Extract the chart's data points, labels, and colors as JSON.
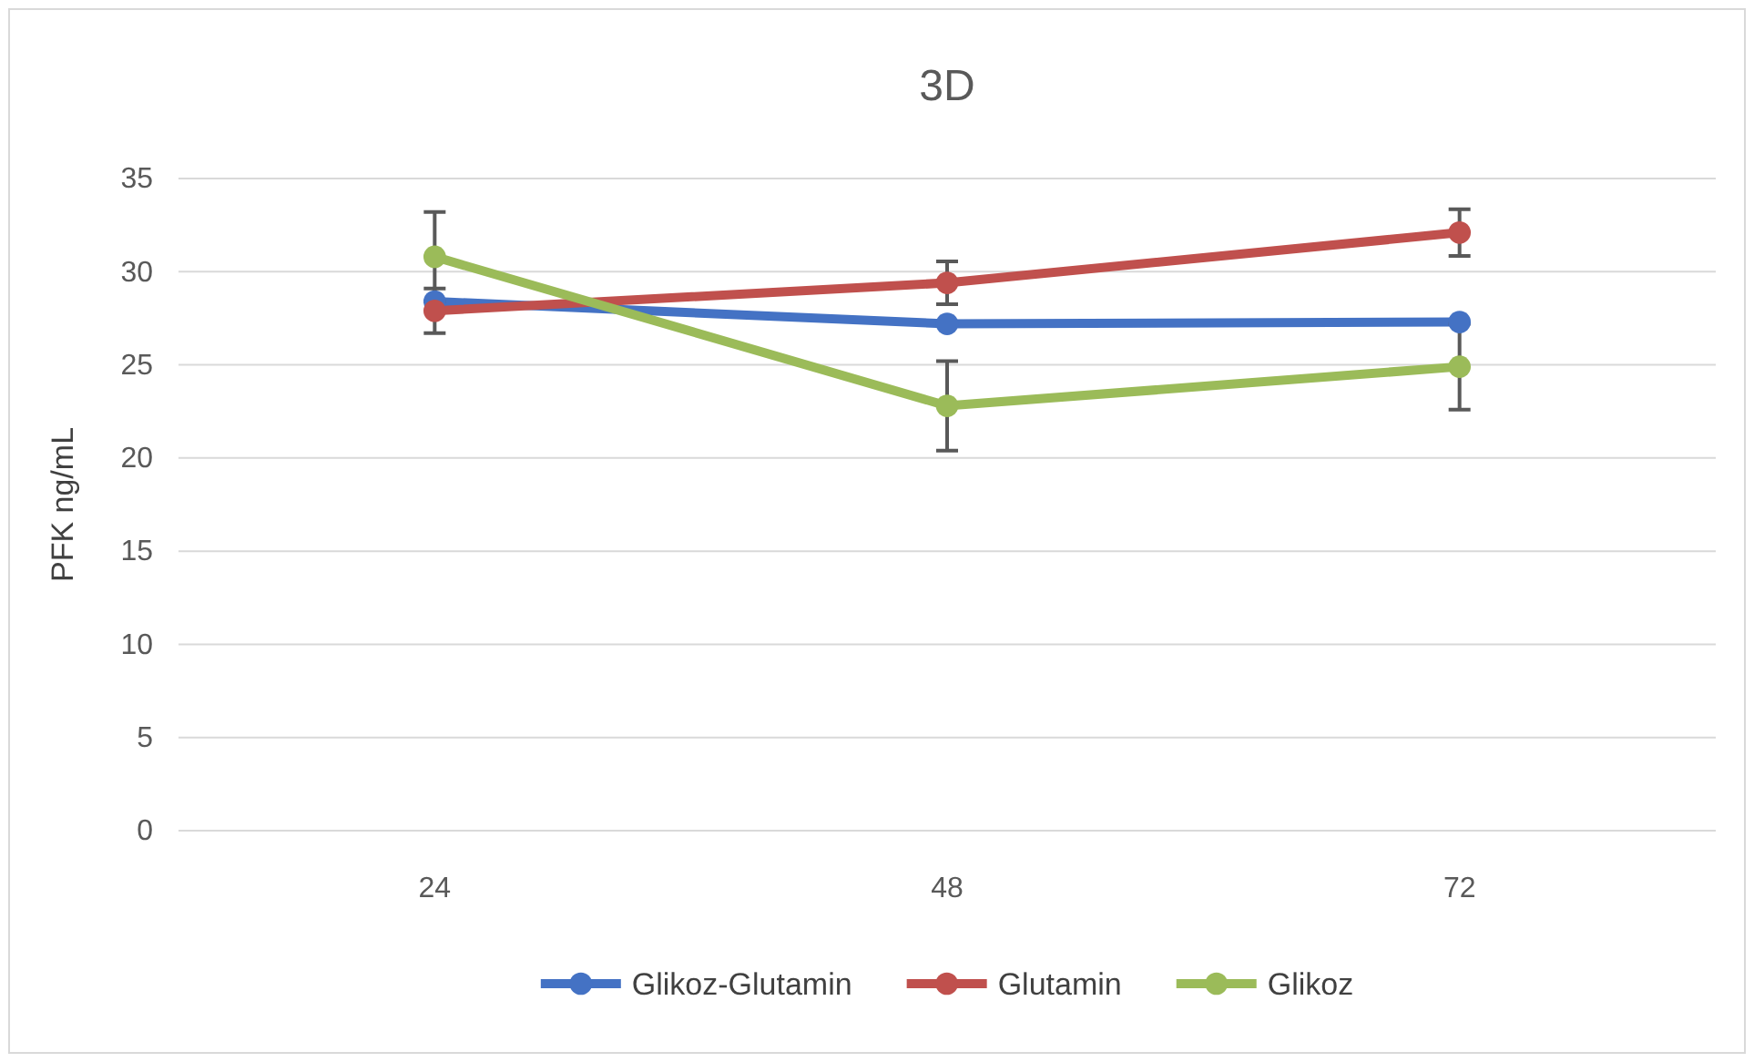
{
  "chart_data": {
    "type": "line",
    "title": "3D",
    "ylabel": "PFK ng/mL",
    "categories": [
      "24",
      "48",
      "72"
    ],
    "series": [
      {
        "name": "Glikoz-Glutamin",
        "color": "#4472c4",
        "values": [
          28.4,
          27.2,
          27.3
        ]
      },
      {
        "name": "Glutamin",
        "color": "#c0504d",
        "values": [
          27.9,
          29.4,
          32.1
        ],
        "errors": [
          1.2,
          1.15,
          1.25
        ]
      },
      {
        "name": "Glikoz",
        "color": "#9bbb59",
        "values": [
          30.8,
          22.8,
          24.9
        ],
        "errors": [
          2.4,
          2.4,
          2.3
        ]
      }
    ],
    "ylim": [
      0,
      35
    ],
    "yticks": [
      0,
      5,
      10,
      15,
      20,
      25,
      30,
      35
    ],
    "grid": "y",
    "legend": "bottom",
    "marker": "circle",
    "line_style": "solid"
  }
}
